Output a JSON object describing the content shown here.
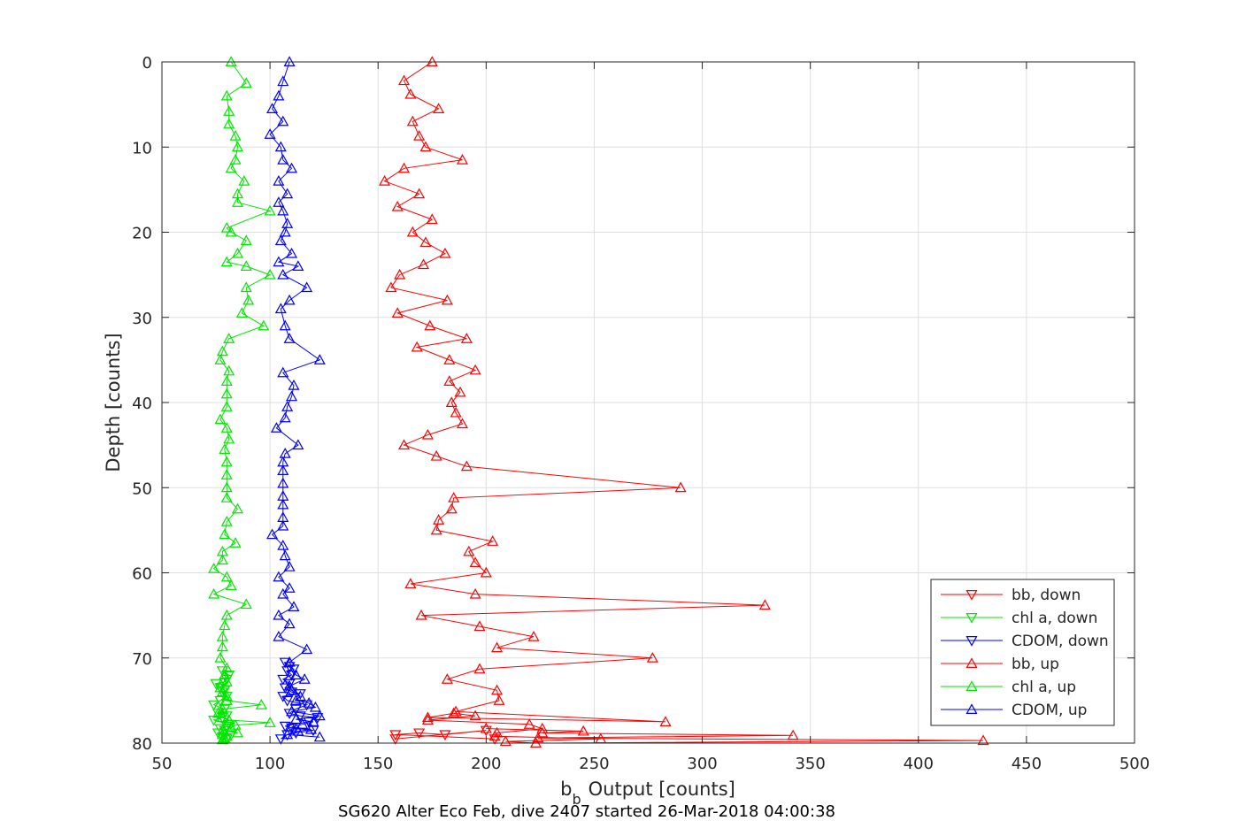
{
  "chart_data": {
    "type": "line",
    "xlabel": "Output [counts]",
    "xlabel_prefix": "b",
    "xlabel_subscript": "b",
    "ylabel": "Depth [counts]",
    "caption": "SG620 Alter Eco Feb, dive 2407 started 26-Mar-2018 04:00:38",
    "xlim": [
      50,
      500
    ],
    "ylim": [
      0,
      80
    ],
    "y_reversed": true,
    "xticks": [
      "50",
      "100",
      "150",
      "200",
      "250",
      "300",
      "350",
      "400",
      "450",
      "500"
    ],
    "yticks": [
      "0",
      "10",
      "20",
      "30",
      "40",
      "50",
      "60",
      "70",
      "80"
    ],
    "grid": true,
    "legend_position": "bottom-right",
    "series": [
      {
        "name": "bb, down",
        "color": "#ff0000",
        "marker": "down",
        "x": [
          204,
          158,
          169,
          181,
          200,
          158
        ],
        "y": [
          79.5,
          79,
          78.8,
          79,
          78.5,
          79.5
        ]
      },
      {
        "name": "chl a, down",
        "color": "#00e600",
        "marker": "down",
        "x": [
          80,
          78,
          82,
          76,
          79,
          77,
          80,
          81,
          74,
          78,
          80,
          76,
          79,
          74,
          77,
          80,
          78,
          79,
          77,
          75,
          79,
          80,
          81,
          78
        ],
        "y": [
          79.5,
          79.3,
          79,
          78.8,
          78.5,
          78.3,
          78,
          77.8,
          77.3,
          77,
          76.8,
          76.5,
          76,
          75.5,
          75,
          74.5,
          74,
          73.8,
          73.5,
          73,
          72.8,
          72.5,
          72,
          71.5
        ]
      },
      {
        "name": "CDOM, down",
        "color": "#0000ff",
        "marker": "down",
        "x": [
          105,
          108,
          112,
          120,
          110,
          107,
          118,
          122,
          114,
          109,
          112,
          117,
          108,
          106,
          114,
          110,
          107,
          109,
          106,
          110,
          108,
          111,
          109,
          107
        ],
        "y": [
          79.5,
          79,
          78.8,
          78.5,
          78.2,
          78,
          77.5,
          77,
          76.8,
          76.5,
          76,
          75.5,
          75,
          74.5,
          74.2,
          74,
          73.5,
          73,
          72.5,
          72,
          71.5,
          71.3,
          71,
          70.5
        ]
      },
      {
        "name": "bb, up",
        "color": "#ff0000",
        "marker": "up",
        "x": [
          175,
          162,
          165,
          178,
          166,
          169,
          172,
          189,
          162,
          153,
          169,
          159,
          175,
          166,
          172,
          181,
          171,
          160,
          156,
          182,
          159,
          174,
          191,
          168,
          183,
          195,
          183,
          188,
          184,
          186,
          189,
          173,
          162,
          177,
          191,
          290,
          185,
          184,
          178,
          177,
          203,
          192,
          195,
          200,
          165,
          195,
          329,
          170,
          197,
          222,
          205,
          277,
          197,
          182,
          205,
          206,
          186,
          283,
          173,
          185,
          195,
          173,
          220,
          226,
          205,
          204,
          253,
          209,
          223,
          430,
          224,
          342,
          226,
          245,
          200
        ],
        "y": [
          0,
          2.2,
          3.8,
          5.5,
          7,
          8.7,
          10,
          11.5,
          12.5,
          14,
          15.5,
          17,
          18.5,
          20,
          21.2,
          22.5,
          23.8,
          25,
          26.5,
          28,
          29.5,
          31,
          32.5,
          33.5,
          35,
          36.2,
          37.5,
          38.8,
          40,
          41.2,
          42.5,
          43.8,
          45,
          46.3,
          47.5,
          50,
          51.2,
          52.5,
          53.8,
          55,
          56.3,
          57.5,
          58.8,
          60,
          61.3,
          62.5,
          63.8,
          65,
          66.3,
          67.5,
          68.8,
          70,
          71.3,
          72.5,
          73.8,
          75,
          76.3,
          77.5,
          77,
          76.5,
          76.8,
          77.3,
          77.8,
          78.3,
          78.8,
          79.2,
          79.5,
          79.8,
          80,
          79.7,
          79.4,
          79.1,
          78.8,
          78.6,
          78.3
        ]
      },
      {
        "name": "chl a, up",
        "color": "#00e600",
        "marker": "up",
        "x": [
          82,
          89,
          80,
          81,
          81,
          84,
          85,
          84,
          82,
          88,
          85,
          85,
          100,
          80,
          82,
          89,
          85,
          80,
          89,
          100,
          89,
          90,
          87,
          97,
          81,
          78,
          77,
          81,
          80,
          80,
          80,
          77,
          80,
          81,
          79,
          80,
          80,
          80,
          80,
          85,
          80,
          79,
          84,
          78,
          78,
          74,
          80,
          82,
          74,
          89,
          80,
          79,
          78,
          78,
          77,
          80,
          79,
          80,
          77,
          78,
          80,
          80,
          96,
          78,
          76,
          78,
          81,
          100,
          84,
          82,
          78,
          85,
          78,
          80,
          79,
          78
        ],
        "y": [
          0,
          2.5,
          4,
          5.8,
          7.3,
          8.7,
          10,
          11.5,
          12.5,
          14,
          15.5,
          16.5,
          17.5,
          19.5,
          20,
          21,
          22.5,
          23.5,
          24,
          25,
          26.5,
          28,
          29.5,
          31,
          32.5,
          34,
          35,
          36.3,
          37.5,
          39,
          40.5,
          42,
          43,
          44.3,
          45.5,
          47,
          48.5,
          50,
          51.2,
          52.5,
          54,
          55.5,
          56.5,
          57.5,
          58.5,
          59.5,
          60.5,
          61.5,
          62.5,
          63.7,
          65,
          66.2,
          67.5,
          68.7,
          70,
          71.2,
          72,
          72.8,
          73.5,
          74,
          74.5,
          75,
          75.5,
          76,
          76.5,
          77,
          77.3,
          77.6,
          77.9,
          78.2,
          78.5,
          78.8,
          79,
          79.2,
          79.4,
          79.6
        ]
      },
      {
        "name": "CDOM, up",
        "color": "#0000ff",
        "marker": "up",
        "x": [
          109,
          106,
          104,
          101,
          106,
          100,
          105,
          106,
          110,
          104,
          108,
          104,
          106,
          108,
          107,
          105,
          110,
          104,
          113,
          106,
          117,
          109,
          105,
          107,
          109,
          123,
          106,
          111,
          110,
          108,
          107,
          103,
          113,
          107,
          106,
          106,
          106,
          106,
          106,
          106,
          106,
          101,
          106,
          107,
          109,
          104,
          109,
          106,
          111,
          104,
          109,
          104,
          117,
          109,
          112,
          116,
          109,
          110,
          114,
          112,
          118,
          121,
          110,
          123,
          112,
          120,
          115,
          110,
          119,
          113,
          108,
          123
        ],
        "y": [
          0,
          2.3,
          4,
          5.5,
          7,
          8.5,
          10,
          11.5,
          12.5,
          14,
          15.5,
          16.5,
          17.5,
          19,
          20,
          21,
          22.5,
          23.5,
          24,
          25,
          26.5,
          28,
          29,
          31,
          32.5,
          35,
          36.5,
          38,
          39.3,
          40.5,
          41.8,
          43,
          45,
          46,
          47,
          48,
          49.5,
          51,
          52,
          53.5,
          54.5,
          55.5,
          56.8,
          58,
          59.3,
          60.5,
          61.8,
          62.5,
          64,
          65,
          66,
          67.5,
          69,
          70.5,
          72,
          72.5,
          73.3,
          73.8,
          74.5,
          75,
          75.3,
          75.8,
          76.3,
          76.8,
          77.2,
          77.5,
          77.8,
          78.1,
          78.4,
          78.6,
          79,
          79.3
        ]
      }
    ]
  }
}
